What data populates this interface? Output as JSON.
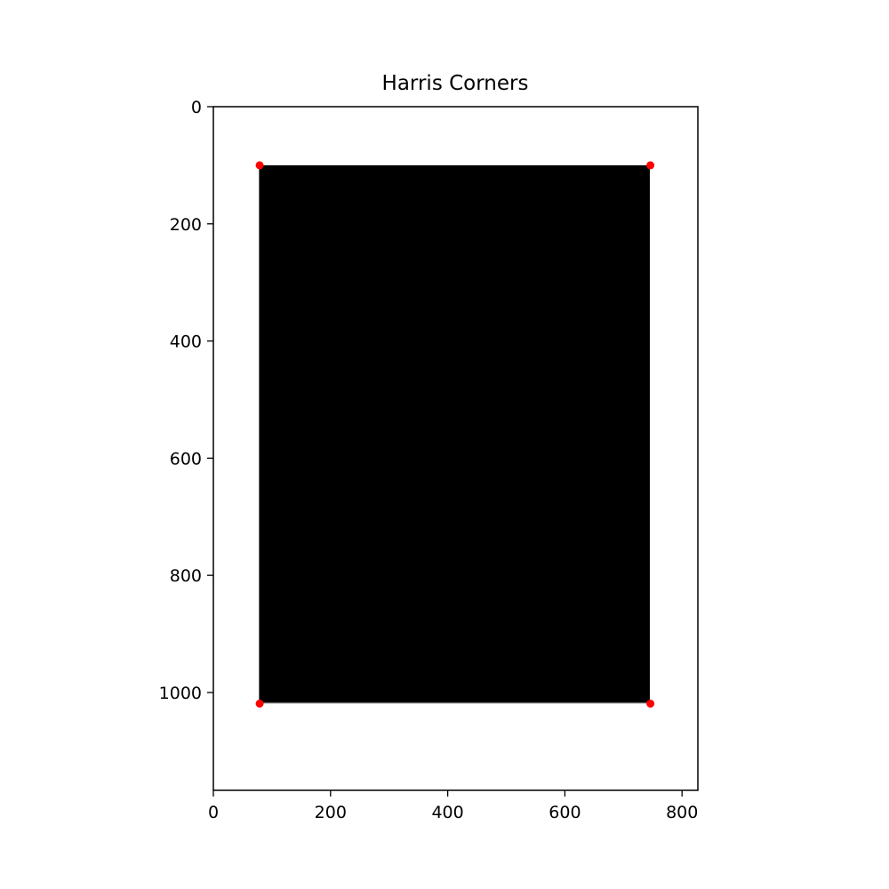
{
  "chart_data": {
    "type": "scatter",
    "title": "Harris Corners",
    "xlabel": "",
    "ylabel": "",
    "xlim": [
      0,
      827
    ],
    "ylim": [
      1167,
      0
    ],
    "y_inverted": true,
    "grid": false,
    "legend": "none",
    "x_ticks": [
      0,
      200,
      400,
      600,
      800
    ],
    "y_ticks": [
      0,
      200,
      400,
      600,
      800,
      1000
    ],
    "image_rect": {
      "x_min": 78,
      "x_max": 745,
      "y_min": 100,
      "y_max": 1018,
      "color": "#000000"
    },
    "series": [
      {
        "color": "#ff0000",
        "points": [
          {
            "x": 79,
            "y": 100
          },
          {
            "x": 746,
            "y": 100
          },
          {
            "x": 79,
            "y": 1019
          },
          {
            "x": 746,
            "y": 1019
          }
        ]
      }
    ]
  }
}
